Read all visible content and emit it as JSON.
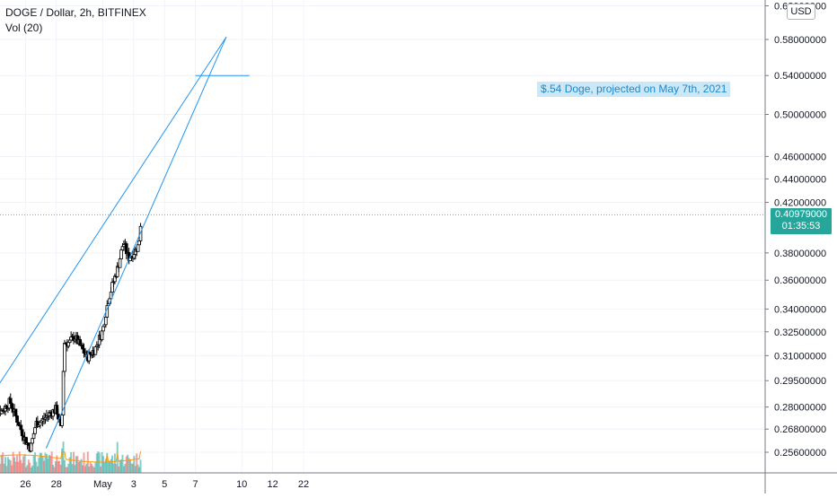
{
  "legend": {
    "symbol_line": "DOGE / Dollar, 2h, BITFINEX",
    "indicator_line": "Vol (20)"
  },
  "price_axis": {
    "currency_badge": "USD",
    "tick_labels": [
      "0.62000000",
      "0.58000000",
      "0.54000000",
      "0.50000000",
      "0.46000000",
      "0.44000000",
      "0.42000000",
      "0.38000000",
      "0.36000000",
      "0.34000000",
      "0.32500000",
      "0.31000000",
      "0.29500000",
      "0.28000000",
      "0.26800000",
      "0.25600000"
    ],
    "last_price": "0.40979000",
    "countdown": "01:35:53"
  },
  "time_axis": {
    "tick_labels": [
      "26",
      "28",
      "May",
      "3",
      "5",
      "7",
      "10",
      "12",
      "22"
    ]
  },
  "annotation": {
    "text": "$.54 Doge, projected on May 7th, 2021",
    "price": 0.54
  },
  "colors": {
    "up": "#26a69a",
    "down": "#ef5350",
    "candle_body_up": "#ffffff",
    "candle_outline": "#000000",
    "trendline": "#2196f3",
    "volume_ma": "#ff9800",
    "grid": "#f0f3fa",
    "price_tag": "#26a69a",
    "annotation_bg": "#cce8f6",
    "annotation_text": "#1e88c8"
  },
  "chart_data": {
    "type": "candlestick",
    "title": "DOGE / Dollar, 2h, BITFINEX",
    "xlabel": "",
    "ylabel": "",
    "ylim": [
      0.25,
      0.63
    ],
    "y_scale": "log",
    "grid": true,
    "x_ticks": [
      "26",
      "28",
      "May",
      "3",
      "5",
      "7",
      "10",
      "12",
      "22"
    ],
    "last_close": 0.40979,
    "series": [
      {
        "name": "DOGE / Dollar",
        "kind": "candles",
        "close_path": [
          {
            "x": "Apr 24 12:00",
            "close": 0.278
          },
          {
            "x": "Apr 25",
            "close": 0.283
          },
          {
            "x": "Apr 25 12:00",
            "close": 0.272
          },
          {
            "x": "Apr 26",
            "close": 0.262
          },
          {
            "x": "Apr 26 08:00",
            "close": 0.258
          },
          {
            "x": "Apr 26 16:00",
            "close": 0.271
          },
          {
            "x": "Apr 27",
            "close": 0.272
          },
          {
            "x": "Apr 27 12:00",
            "close": 0.276
          },
          {
            "x": "Apr 28",
            "close": 0.279
          },
          {
            "x": "Apr 28 08:00",
            "close": 0.266
          },
          {
            "x": "Apr 28 12:00",
            "close": 0.318
          },
          {
            "x": "Apr 28 20:00",
            "close": 0.318
          },
          {
            "x": "Apr 29 04:00",
            "close": 0.322
          },
          {
            "x": "Apr 29 16:00",
            "close": 0.314
          },
          {
            "x": "Apr 30",
            "close": 0.309
          },
          {
            "x": "Apr 30 12:00",
            "close": 0.314
          },
          {
            "x": "May 1",
            "close": 0.326
          },
          {
            "x": "May 1 08:00",
            "close": 0.345
          },
          {
            "x": "May 1 16:00",
            "close": 0.358
          },
          {
            "x": "May 2",
            "close": 0.37
          },
          {
            "x": "May 2 08:00",
            "close": 0.388
          },
          {
            "x": "May 2 16:00",
            "close": 0.376
          },
          {
            "x": "May 3",
            "close": 0.38
          },
          {
            "x": "May 3 08:00",
            "close": 0.386
          },
          {
            "x": "May 3 12:00",
            "close": 0.40979
          }
        ]
      },
      {
        "name": "Vol (20)",
        "kind": "volume_with_ma"
      },
      {
        "name": "",
        "kind": "trendline",
        "points": [
          {
            "x": "Apr 24",
            "y": 0.289
          },
          {
            "x": "May 9",
            "y": 0.583
          }
        ]
      },
      {
        "name": "",
        "kind": "trendline",
        "points": [
          {
            "x": "Apr 27 08:00",
            "y": 0.258
          },
          {
            "x": "May 9",
            "y": 0.583
          }
        ]
      },
      {
        "name": "",
        "kind": "horizontal_ray",
        "points": [
          {
            "x": "May 7",
            "y": 0.54
          },
          {
            "x": "May 10 12:00",
            "y": 0.54
          }
        ]
      }
    ],
    "annotations": [
      {
        "text": "$.54 Doge, projected on May 7th, 2021",
        "y": 0.54
      }
    ]
  }
}
